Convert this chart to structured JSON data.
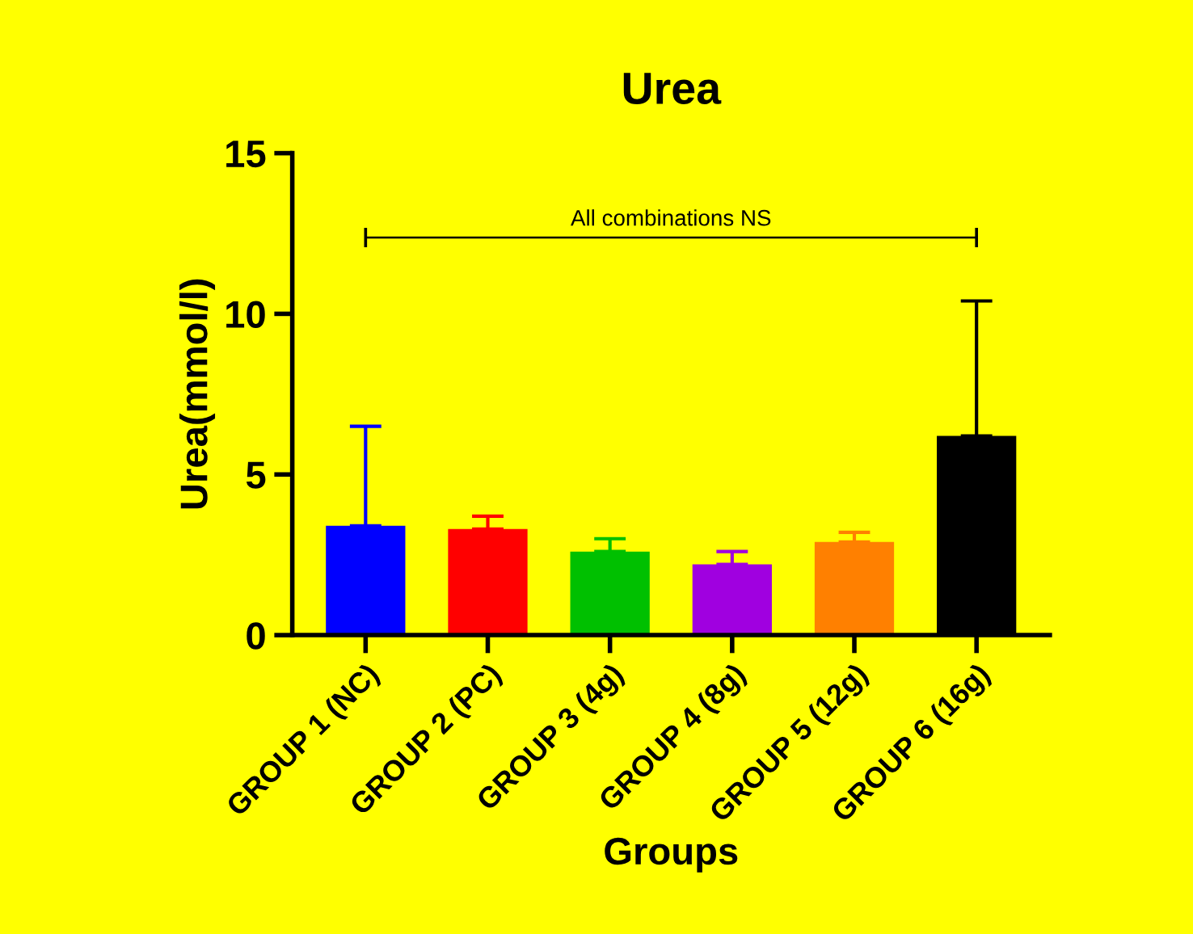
{
  "chart_data": {
    "type": "bar",
    "title": "Urea",
    "xlabel": "Groups",
    "ylabel": "Urea(mmol/l)",
    "categories": [
      "GROUP 1 (NC)",
      "GROUP 2 (PC)",
      "GROUP 3 (4g)",
      "GROUP 4 (8g)",
      "GROUP 5 (12g)",
      "GROUP 6 (16g)"
    ],
    "values": [
      3.4,
      3.3,
      2.6,
      2.2,
      2.9,
      6.2
    ],
    "errors": [
      [
        3.4,
        6.5
      ],
      [
        3.3,
        3.7
      ],
      [
        2.6,
        3.0
      ],
      [
        2.2,
        2.6
      ],
      [
        2.9,
        3.2
      ],
      [
        6.2,
        10.4
      ]
    ],
    "colors": [
      "#0000ff",
      "#ff0000",
      "#00c000",
      "#a000e0",
      "#ff8000",
      "#000000"
    ],
    "ylim": [
      0,
      15
    ],
    "yticks": [
      0,
      5,
      10,
      15
    ],
    "grid": false,
    "annotations": [
      "All combinations NS"
    ]
  }
}
